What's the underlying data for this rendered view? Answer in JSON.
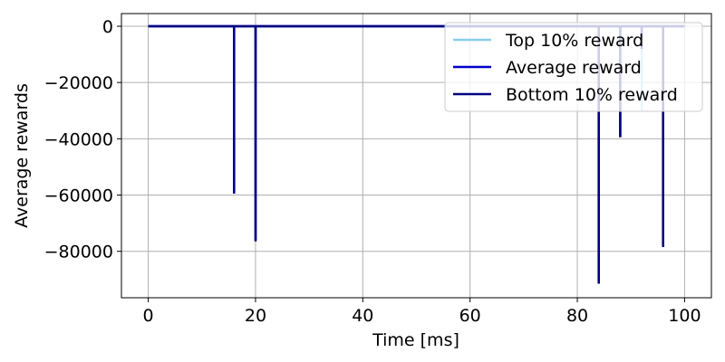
{
  "chart_data": {
    "type": "line",
    "title": "",
    "xlabel": "Time [ms]",
    "ylabel": "Average rewards",
    "xlim": [
      -5,
      105
    ],
    "ylim": [
      -96500,
      4500
    ],
    "xticks": [
      0,
      20,
      40,
      60,
      80,
      100
    ],
    "xtick_labels": [
      "0",
      "20",
      "40",
      "60",
      "80",
      "100"
    ],
    "yticks": [
      0,
      -20000,
      -40000,
      -60000,
      -80000
    ],
    "ytick_labels": [
      "0",
      "−20000",
      "−40000",
      "−60000",
      "−80000"
    ],
    "grid": true,
    "legend_position": "top-right",
    "series": [
      {
        "name": "Top 10% reward",
        "color": "#87ceeb",
        "x": [
          0,
          16,
          16,
          16,
          20,
          20,
          20,
          84,
          84,
          84,
          88,
          88,
          88,
          92,
          92,
          92,
          96,
          96,
          96,
          100
        ],
        "y": [
          0,
          0,
          -4000,
          0,
          0,
          -6000,
          0,
          0,
          -5000,
          0,
          0,
          -4000,
          0,
          0,
          -30000,
          0,
          0,
          -6000,
          0,
          0
        ]
      },
      {
        "name": "Average reward",
        "color": "#0000cd",
        "x": [
          0,
          16,
          16,
          16,
          20,
          20,
          20,
          84,
          84,
          84,
          88,
          88,
          88,
          92,
          92,
          92,
          96,
          96,
          96,
          100
        ],
        "y": [
          0,
          0,
          -59000,
          0,
          0,
          -76000,
          0,
          0,
          -91000,
          0,
          0,
          -39000,
          0,
          0,
          -8000,
          0,
          0,
          -78000,
          0,
          0
        ]
      },
      {
        "name": "Bottom 10% reward",
        "color": "#000080",
        "x": [
          0,
          16,
          16,
          16,
          20,
          20,
          20,
          84,
          84,
          84,
          88,
          88,
          88,
          92,
          92,
          92,
          96,
          96,
          96,
          100
        ],
        "y": [
          0,
          0,
          -59500,
          0,
          0,
          -76500,
          0,
          0,
          -91500,
          0,
          0,
          -39500,
          0,
          0,
          -8000,
          0,
          0,
          -78500,
          0,
          0
        ]
      }
    ]
  }
}
